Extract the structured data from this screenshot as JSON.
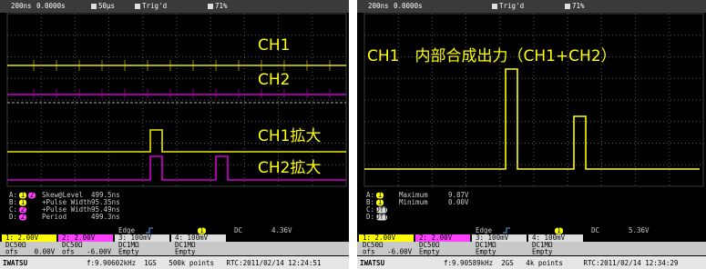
{
  "panels": [
    {
      "top": {
        "timebase": "200ns",
        "delay": "0.0000s",
        "zoom": "50μs",
        "trigger": "Trig'd",
        "memory": "71%"
      },
      "labels": [
        "CH1",
        "CH2",
        "CH1拡大",
        "CH2拡大"
      ],
      "measurements": [
        {
          "slot": "A:",
          "channels": [
            "1",
            "2"
          ],
          "name": "Skew@Level",
          "value": "499.5ns"
        },
        {
          "slot": "B:",
          "channels": [
            "1"
          ],
          "name": "+Pulse Width",
          "value": "95.35ns"
        },
        {
          "slot": "C:",
          "channels": [
            "2"
          ],
          "name": "+Pulse Width",
          "value": "95.49ns"
        },
        {
          "slot": "D:",
          "channels": [
            "2"
          ],
          "name": "Period",
          "value": "499.3ns"
        }
      ],
      "edge": {
        "label": "Edge",
        "channel": "1",
        "coupling": "DC",
        "level": "4.36V"
      },
      "channels": [
        {
          "scale": "1: 2.00V",
          "input": "DC50Ω",
          "offset": "ofs    0.00V"
        },
        {
          "scale": "2: 2.00V",
          "input": "DC50Ω",
          "offset": "ofs   -6.00V"
        },
        {
          "scale": "3: 100mV",
          "input": "DC1MΩ",
          "offset": "Empty"
        },
        {
          "scale": "4: 100mV",
          "input": "DC1MΩ",
          "offset": "Empty"
        }
      ],
      "footer": {
        "brand": "IWATSU",
        "status": "f:9.90602kHz  1GS   500k points   RTC:2011/02/14 12:24:51"
      }
    },
    {
      "top": {
        "timebase": "200ns",
        "delay": "0.0000s",
        "trigger": "Trig'd",
        "memory": "71%"
      },
      "labels": [
        "CH1　内部合成出力（CH1+CH2）"
      ],
      "measurements": [
        {
          "slot": "A:",
          "channels": [
            "1"
          ],
          "name": "Maximum",
          "value": "9.87V"
        },
        {
          "slot": "B:",
          "channels": [
            "1"
          ],
          "name": "Minimum",
          "value": "0.00V"
        },
        {
          "slot": "C:",
          "channels": [
            "Off"
          ]
        },
        {
          "slot": "D:",
          "channels": [
            "Off"
          ]
        }
      ],
      "edge": {
        "label": "Edge",
        "channel": "1",
        "coupling": "DC",
        "level": "5.36V"
      },
      "channels": [
        {
          "scale": "1: 2.00V",
          "input": "DC50Ω",
          "offset": "ofs   -6.00V"
        },
        {
          "scale": "2: 2.00V",
          "input": "DC50Ω",
          "offset": "Empty"
        },
        {
          "scale": "3: 100mV",
          "input": "DC1MΩ",
          "offset": "Empty"
        },
        {
          "scale": "4: 100mV",
          "input": "DC1MΩ",
          "offset": "Empty"
        }
      ],
      "footer": {
        "brand": "IWATSU",
        "status": "f:9.90589kHz  2GS   4k points     RTC:2011/02/14 12:34:29"
      }
    }
  ]
}
